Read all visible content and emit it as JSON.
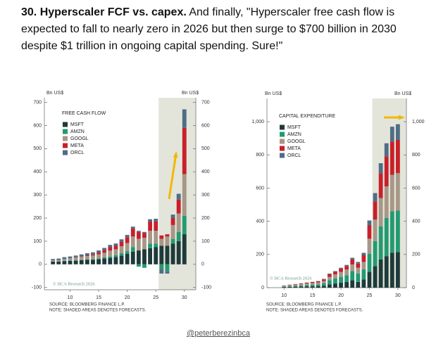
{
  "header": {
    "title": "30. Hyperscaler FCF vs. capex.",
    "text": "And finally, \"Hyperscaler free cash flow is expected to fall to nearly zero in 2026 but then surge to $700 billion in 2030 despite $1 trillion in ongoing capital spending. Sure!\""
  },
  "chart_data": [
    {
      "type": "bar",
      "stacked": true,
      "legend_title": "FREE CASH FLOW",
      "y_unit": "Bn US$",
      "x": [
        7,
        8,
        9,
        10,
        11,
        12,
        13,
        14,
        15,
        16,
        17,
        18,
        19,
        20,
        21,
        22,
        23,
        24,
        25,
        26,
        27,
        28,
        29,
        30
      ],
      "series": [
        {
          "name": "MSFT",
          "color": "#1e3a3a",
          "values": [
            12,
            12,
            14,
            15,
            16,
            18,
            20,
            20,
            22,
            25,
            28,
            32,
            38,
            45,
            55,
            60,
            65,
            70,
            75,
            80,
            80,
            90,
            100,
            130
          ]
        },
        {
          "name": "AMZN",
          "color": "#239a72",
          "values": [
            0,
            0,
            1,
            1,
            1,
            1,
            2,
            3,
            4,
            5,
            6,
            8,
            10,
            12,
            20,
            -10,
            -15,
            20,
            15,
            -20,
            -30,
            20,
            40,
            80
          ]
        },
        {
          "name": "GOOGL",
          "color": "#a79787",
          "values": [
            5,
            6,
            8,
            10,
            12,
            13,
            14,
            15,
            17,
            20,
            25,
            25,
            30,
            35,
            45,
            50,
            50,
            55,
            55,
            30,
            40,
            60,
            80,
            180
          ]
        },
        {
          "name": "META",
          "color": "#c8202a",
          "values": [
            0,
            0,
            0,
            0,
            1,
            2,
            3,
            5,
            8,
            12,
            15,
            15,
            20,
            25,
            35,
            30,
            20,
            40,
            40,
            15,
            10,
            30,
            60,
            200
          ]
        },
        {
          "name": "ORCL",
          "color": "#4f6d86",
          "values": [
            6,
            7,
            8,
            8,
            8,
            9,
            9,
            9,
            9,
            9,
            10,
            10,
            10,
            10,
            8,
            5,
            5,
            10,
            12,
            -20,
            -10,
            15,
            25,
            80
          ]
        }
      ],
      "xlim": [
        5.5,
        32
      ],
      "ylim": [
        -110,
        720
      ],
      "xticks": [
        10,
        15,
        20,
        25,
        30
      ],
      "yticks": [
        -100,
        0,
        100,
        200,
        300,
        400,
        500,
        600,
        700
      ],
      "forecast_from": 26,
      "watermark": "© BCA Research 2026",
      "source": "SOURCE: BLOOMBERG FINANCE L.P.",
      "note": "NOTE: SHADED AREAS DENOTES FORECASTS."
    },
    {
      "type": "bar",
      "stacked": true,
      "legend_title": "CAPITAL EXPENDITURE",
      "y_unit": "Bn US$",
      "x": [
        10,
        11,
        12,
        13,
        14,
        15,
        16,
        17,
        18,
        19,
        20,
        21,
        22,
        23,
        24,
        25,
        26,
        27,
        28,
        29,
        30
      ],
      "series": [
        {
          "name": "MSFT",
          "color": "#1e3a3a",
          "values": [
            4,
            5,
            6,
            7,
            8,
            9,
            10,
            12,
            20,
            25,
            30,
            35,
            45,
            35,
            50,
            95,
            130,
            170,
            190,
            210,
            215
          ]
        },
        {
          "name": "AMZN",
          "color": "#239a72",
          "values": [
            3,
            4,
            5,
            6,
            8,
            9,
            10,
            15,
            25,
            30,
            35,
            40,
            55,
            50,
            60,
            110,
            150,
            200,
            230,
            250,
            250
          ]
        },
        {
          "name": "GOOGL",
          "color": "#a79787",
          "values": [
            5,
            6,
            7,
            8,
            9,
            10,
            11,
            13,
            20,
            25,
            30,
            35,
            40,
            35,
            45,
            90,
            130,
            170,
            190,
            220,
            225
          ]
        },
        {
          "name": "META",
          "color": "#c8202a",
          "values": [
            1,
            2,
            3,
            4,
            5,
            6,
            7,
            10,
            15,
            15,
            20,
            20,
            30,
            25,
            40,
            80,
            110,
            150,
            180,
            200,
            200
          ]
        },
        {
          "name": "ORCL",
          "color": "#4f6d86",
          "values": [
            1,
            1,
            1,
            1,
            1,
            1,
            2,
            3,
            5,
            5,
            5,
            7,
            10,
            10,
            15,
            30,
            50,
            60,
            80,
            90,
            95
          ]
        }
      ],
      "xlim": [
        7,
        31.5
      ],
      "ylim": [
        0,
        1140
      ],
      "xticks": [
        10,
        15,
        20,
        25,
        30
      ],
      "yticks": [
        0,
        200,
        400,
        600,
        800,
        {
          "value": 1000,
          "label": "1,000"
        }
      ],
      "forecast_from": 26,
      "watermark": "© BCA Research 2026",
      "source": "SOURCE: BLOOMBERG FINANCE L.P.",
      "note": "NOTE: SHADED AREAS DENOTES FORECASTS."
    }
  ],
  "footer": "@peterberezinbca"
}
